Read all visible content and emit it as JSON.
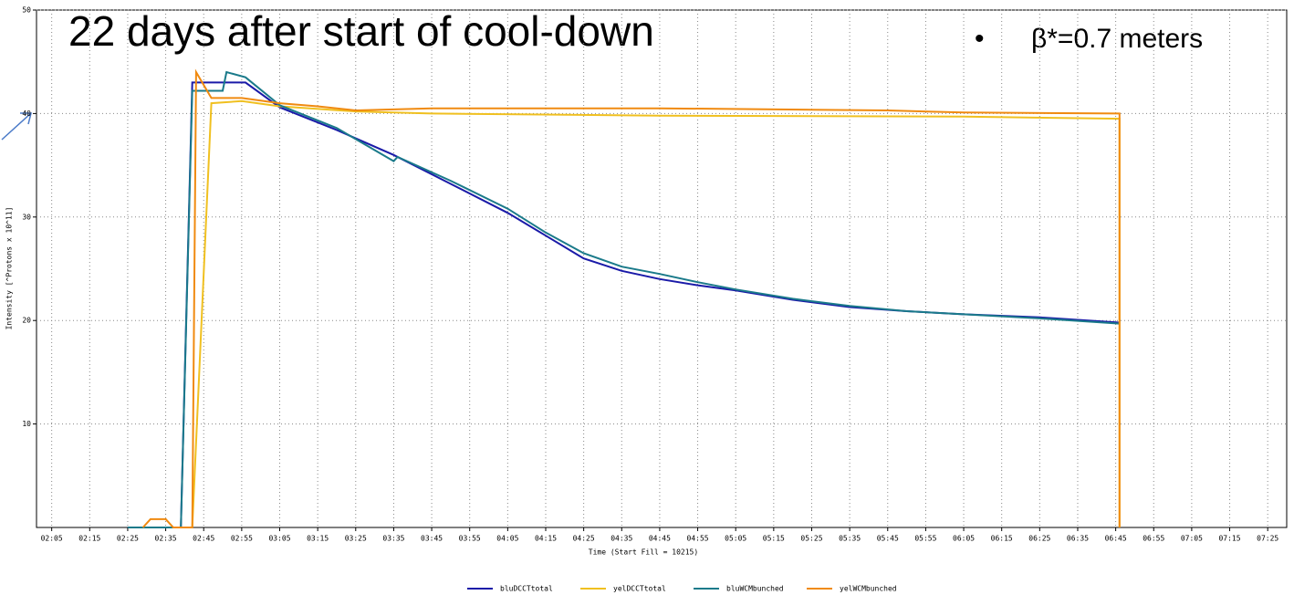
{
  "chart_data": {
    "type": "line",
    "title": "22 days after start of cool-down",
    "annotation": "β*=0.7 meters",
    "x_label": "Time (Start Fill = 10215)",
    "y_label": "Intensity [^Protons x 10^11]",
    "xlim": [
      "02:01",
      "07:30"
    ],
    "xticks": [
      "02:05",
      "02:15",
      "02:25",
      "02:35",
      "02:45",
      "02:55",
      "03:05",
      "03:15",
      "03:25",
      "03:35",
      "03:45",
      "03:55",
      "04:05",
      "04:15",
      "04:25",
      "04:35",
      "04:45",
      "04:55",
      "05:05",
      "05:15",
      "05:25",
      "05:35",
      "05:45",
      "05:55",
      "06:05",
      "06:15",
      "06:25",
      "06:35",
      "06:45",
      "06:55",
      "07:05",
      "07:15",
      "07:25"
    ],
    "ylim": [
      0,
      50
    ],
    "yticks": [
      10,
      20,
      30,
      40,
      50
    ],
    "grid": true,
    "series": [
      {
        "name": "bluDCCTtotal",
        "color": "#1a1aa8",
        "x": [
          "02:25",
          "02:39",
          "02:42",
          "02:56",
          "03:05",
          "03:20",
          "03:35",
          "03:50",
          "04:05",
          "04:15",
          "04:25",
          "04:35",
          "04:45",
          "04:55",
          "05:05",
          "05:20",
          "05:35",
          "05:50",
          "06:05",
          "06:25",
          "06:46"
        ],
        "values": [
          0,
          0,
          43,
          43,
          40.6,
          38.4,
          36,
          33.2,
          30.4,
          28.2,
          26,
          24.8,
          24,
          23.4,
          22.9,
          22,
          21.3,
          20.9,
          20.6,
          20.3,
          19.8
        ]
      },
      {
        "name": "yelDCCTtotal",
        "color": "#f0c020",
        "x": [
          "02:42",
          "02:47",
          "02:55",
          "03:05",
          "03:25",
          "03:45",
          "04:45",
          "06:05",
          "06:46",
          "06:46"
        ],
        "values": [
          0,
          41,
          41.2,
          40.7,
          40.2,
          40,
          39.8,
          39.7,
          39.5,
          0
        ]
      },
      {
        "name": "bluWCMbunched",
        "color": "#1a7a8a",
        "x": [
          "02:25",
          "02:39",
          "02:42",
          "02:50",
          "02:51",
          "02:56",
          "03:05",
          "03:20",
          "03:35",
          "03:36",
          "03:50",
          "04:05",
          "04:15",
          "04:25",
          "04:35",
          "04:45",
          "04:55",
          "05:05",
          "05:20",
          "05:35",
          "05:50",
          "06:05",
          "06:25",
          "06:46"
        ],
        "values": [
          0,
          0,
          42.2,
          42.2,
          44,
          43.5,
          40.8,
          38.6,
          35.4,
          35.8,
          33.5,
          30.8,
          28.5,
          26.5,
          25.2,
          24.5,
          23.7,
          23,
          22.1,
          21.4,
          20.9,
          20.6,
          20.2,
          19.7
        ]
      },
      {
        "name": "yelWCMbunched",
        "color": "#f08a10",
        "x": [
          "02:29",
          "02:31",
          "02:35",
          "02:37",
          "02:42",
          "02:43",
          "02:47",
          "02:55",
          "03:05",
          "03:15",
          "03:25",
          "03:45",
          "04:45",
          "05:45",
          "06:05",
          "06:46",
          "06:46"
        ],
        "values": [
          0,
          0.8,
          0.8,
          0,
          0,
          44,
          41.5,
          41.5,
          41,
          40.7,
          40.3,
          40.5,
          40.5,
          40.3,
          40.1,
          40,
          0
        ]
      }
    ]
  }
}
